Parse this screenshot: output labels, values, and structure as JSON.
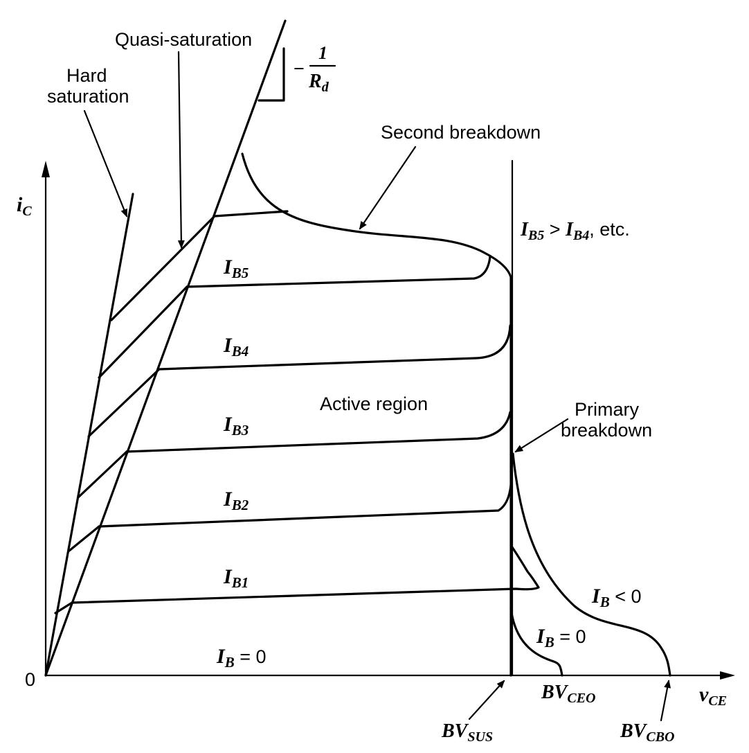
{
  "axes": {
    "y_symbol": "i",
    "y_sub": "C",
    "x_symbol": "v",
    "x_sub": "CE",
    "origin": "0"
  },
  "annotations": {
    "hard_saturation_line1": "Hard",
    "hard_saturation_line2": "saturation",
    "quasi_saturation": "Quasi-saturation",
    "second_breakdown": "Second breakdown",
    "active_region": "Active region",
    "primary_breakdown_line1": "Primary",
    "primary_breakdown_line2": "breakdown",
    "slope_prefix": "−",
    "slope_num": "1",
    "slope_den_symbol": "R",
    "slope_den_sub": "d",
    "order_note": {
      "a_symbol": "I",
      "a_sub": "B5",
      "relation": " > ",
      "b_symbol": "I",
      "b_sub": "B4",
      "suffix": ", etc."
    }
  },
  "curve_labels": {
    "ib5": {
      "symbol": "I",
      "sub": "B5"
    },
    "ib4": {
      "symbol": "I",
      "sub": "B4"
    },
    "ib3": {
      "symbol": "I",
      "sub": "B3"
    },
    "ib2": {
      "symbol": "I",
      "sub": "B2"
    },
    "ib1": {
      "symbol": "I",
      "sub": "B1"
    },
    "ib0": {
      "symbol": "I",
      "sub": "B",
      "rest": " = 0"
    },
    "ib0_breakdown": {
      "symbol": "I",
      "sub": "B",
      "rest": " = 0"
    },
    "ib_neg": {
      "symbol": "I",
      "sub": "B",
      "rest": " < 0"
    }
  },
  "voltage_labels": {
    "bv_sus": {
      "symbol": "BV",
      "sub": "SUS"
    },
    "bv_ceo": {
      "symbol": "BV",
      "sub": "CEO"
    },
    "bv_cbo": {
      "symbol": "BV",
      "sub": "CBO"
    }
  }
}
